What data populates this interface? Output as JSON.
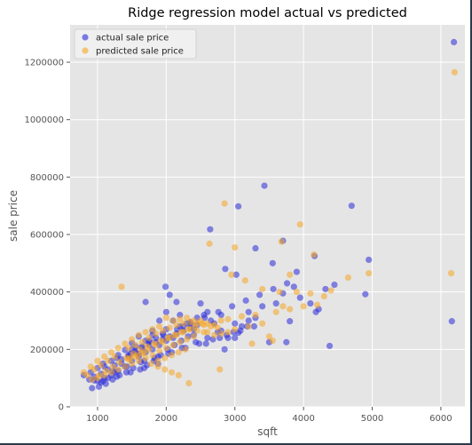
{
  "chart_data": {
    "type": "scatter",
    "title": "Ridge regression model actual vs predicted",
    "xlabel": "sqft",
    "ylabel": "sale price",
    "xlim": [
      600,
      6350
    ],
    "ylim": [
      0,
      1330000
    ],
    "xticks": [
      1000,
      2000,
      3000,
      4000,
      5000,
      6000
    ],
    "yticks": [
      0,
      200000,
      400000,
      600000,
      800000,
      1000000,
      1200000
    ],
    "xtick_labels": [
      "1000",
      "2000",
      "3000",
      "4000",
      "5000",
      "6000"
    ],
    "ytick_labels": [
      "0",
      "200000",
      "400000",
      "600000",
      "800000",
      "1000000",
      "1200000"
    ],
    "grid": true,
    "legend_position": "top-left",
    "colors": {
      "background": "#e5e5e5",
      "grid": "#ffffff",
      "actual": "#2a2ad8",
      "predicted": "#f5a623"
    },
    "series": [
      {
        "name": "actual sale price",
        "color": "#2a2ad8",
        "x": [
          6190,
          6160,
          3430,
          3050,
          4700,
          2640,
          3700,
          3300,
          3900,
          4160,
          3550,
          2860,
          3020,
          4950,
          3860,
          3950,
          4180,
          4380,
          4450,
          4100,
          3700,
          3200,
          3800,
          4220,
          4320,
          3050,
          3000,
          3500,
          3750,
          2850,
          4900,
          1990,
          2050,
          2150,
          2000,
          1700,
          2500,
          2600,
          2700,
          2800,
          1900,
          1800,
          1600,
          1500,
          1400,
          1300,
          1200,
          1100,
          1000,
          900,
          800,
          950,
          1050,
          1150,
          1250,
          1350,
          1450,
          1550,
          1650,
          1750,
          1850,
          1950,
          2250,
          2350,
          2450,
          2550,
          2650,
          2750,
          2900,
          3100,
          3300,
          3600,
          2100,
          2200,
          2300,
          2400,
          1700,
          1600,
          1500,
          1800,
          1900,
          2000,
          2100,
          1300,
          1400,
          1200,
          1100,
          1000,
          1500,
          1600,
          1700,
          1800,
          2000,
          2200,
          2400,
          2600,
          2800,
          3000,
          3200,
          3400,
          1350,
          1450,
          1550,
          1650,
          1750,
          1850,
          1950,
          2050,
          2150,
          2250,
          2350,
          2450,
          1250,
          1150,
          1050,
          950,
          880,
          1080,
          1280,
          1480,
          1680,
          1880,
          2080,
          2280,
          2480,
          2680,
          2880,
          3080,
          3280,
          1620,
          1720,
          1820,
          1920,
          2020,
          2120,
          2220,
          2320,
          1420,
          1520,
          1320,
          1220,
          1120,
          1020,
          920,
          1560,
          1760,
          1960,
          2160,
          2360,
          2560,
          2760,
          2960,
          3160,
          3360,
          3560,
          3760,
          1880,
          1680,
          1480,
          1280,
          1080,
          2580,
          2780,
          2980,
          3180,
          2030,
          2230,
          2430,
          1830,
          1630,
          1430,
          1230
        ],
        "y": [
          1270000,
          298000,
          770000,
          698000,
          700000,
          618000,
          578000,
          552000,
          470000,
          525000,
          500000,
          480000,
          460000,
          512000,
          418000,
          380000,
          330000,
          212000,
          425000,
          360000,
          395000,
          330000,
          298000,
          340000,
          410000,
          258000,
          240000,
          225000,
          225000,
          200000,
          392000,
          418000,
          390000,
          365000,
          330000,
          365000,
          360000,
          330000,
          290000,
          320000,
          300000,
          265000,
          245000,
          222000,
          198000,
          180000,
          160000,
          140000,
          135000,
          120000,
          110000,
          92000,
          85000,
          100000,
          120000,
          150000,
          175000,
          190000,
          210000,
          225000,
          240000,
          255000,
          280000,
          295000,
          310000,
          320000,
          300000,
          260000,
          240000,
          280000,
          310000,
          360000,
          300000,
          320000,
          290000,
          270000,
          190000,
          175000,
          160000,
          200000,
          215000,
          230000,
          240000,
          125000,
          140000,
          110000,
          100000,
          90000,
          200000,
          185000,
          230000,
          250000,
          270000,
          280000,
          250000,
          240000,
          265000,
          290000,
          300000,
          350000,
          165000,
          180000,
          195000,
          205000,
          215000,
          225000,
          235000,
          245000,
          255000,
          265000,
          275000,
          285000,
          145000,
          130000,
          115000,
          105000,
          95000,
          150000,
          170000,
          185000,
          160000,
          175000,
          190000,
          205000,
          220000,
          235000,
          250000,
          265000,
          280000,
          130000,
          145000,
          160000,
          180000,
          200000,
          215000,
          230000,
          245000,
          120000,
          135000,
          110000,
          95000,
          80000,
          70000,
          65000,
          210000,
          230000,
          250000,
          270000,
          290000,
          310000,
          330000,
          350000,
          370000,
          390000,
          410000,
          430000,
          150000,
          135000,
          120000,
          105000,
          90000,
          220000,
          240000,
          260000,
          280000,
          185000,
          205000,
          225000,
          170000,
          155000,
          140000,
          125000
        ]
      },
      {
        "name": "predicted sale price",
        "color": "#f5a623",
        "x": [
          6200,
          6150,
          2850,
          2630,
          3000,
          3950,
          3680,
          4150,
          4650,
          4950,
          3800,
          2950,
          3150,
          3400,
          3650,
          3900,
          4100,
          4300,
          4400,
          3700,
          3500,
          1350,
          2000,
          2100,
          2200,
          2300,
          2400,
          2500,
          2600,
          2700,
          2800,
          2900,
          3100,
          3300,
          3600,
          3800,
          4000,
          4200,
          1900,
          1800,
          1700,
          1600,
          1500,
          1400,
          1300,
          1200,
          1100,
          1000,
          900,
          800,
          850,
          950,
          1050,
          1150,
          1250,
          1450,
          1550,
          1650,
          1750,
          1850,
          1950,
          2050,
          2150,
          2250,
          2350,
          2450,
          2550,
          2650,
          2750,
          2050,
          2150,
          2250,
          1750,
          1850,
          1950,
          1650,
          1550,
          1450,
          2350,
          2450,
          2550,
          1800,
          1900,
          2000,
          2100,
          2200,
          2300,
          2400,
          1700,
          1600,
          1500,
          1400,
          1300,
          1200,
          1100,
          1000,
          2600,
          2700,
          2800,
          2900,
          3000,
          3200,
          3400,
          1620,
          1720,
          1820,
          1920,
          2020,
          2120,
          2220,
          2320,
          2420,
          2520,
          1520,
          1420,
          1320,
          1220,
          1120,
          1020,
          920,
          2330,
          2780,
          3250,
          3550,
          1880,
          1980,
          2080,
          2180,
          2280,
          1680,
          1580,
          1480,
          1780,
          1880,
          1980,
          2080,
          2180
        ],
        "y": [
          1165000,
          465000,
          708000,
          568000,
          555000,
          635000,
          575000,
          530000,
          450000,
          465000,
          460000,
          460000,
          440000,
          410000,
          400000,
          400000,
          395000,
          385000,
          405000,
          350000,
          245000,
          418000,
          310000,
          300000,
          305000,
          310000,
          300000,
          300000,
          290000,
          285000,
          300000,
          305000,
          315000,
          320000,
          330000,
          340000,
          350000,
          355000,
          280000,
          270000,
          260000,
          250000,
          235000,
          220000,
          205000,
          190000,
          175000,
          160000,
          140000,
          120000,
          110000,
          130000,
          145000,
          160000,
          175000,
          205000,
          215000,
          225000,
          240000,
          255000,
          265000,
          275000,
          285000,
          290000,
          295000,
          290000,
          285000,
          280000,
          275000,
          240000,
          250000,
          260000,
          200000,
          215000,
          225000,
          185000,
          175000,
          165000,
          270000,
          265000,
          260000,
          180000,
          195000,
          205000,
          215000,
          225000,
          235000,
          245000,
          170000,
          160000,
          150000,
          140000,
          130000,
          120000,
          110000,
          100000,
          260000,
          250000,
          255000,
          260000,
          270000,
          280000,
          290000,
          200000,
          210000,
          220000,
          230000,
          240000,
          250000,
          260000,
          270000,
          280000,
          290000,
          185000,
          170000,
          155000,
          140000,
          125000,
          110000,
          95000,
          82000,
          130000,
          220000,
          230000,
          160000,
          170000,
          180000,
          190000,
          200000,
          190000,
          180000,
          170000,
          150000,
          140000,
          130000,
          120000,
          110000
        ]
      }
    ]
  }
}
